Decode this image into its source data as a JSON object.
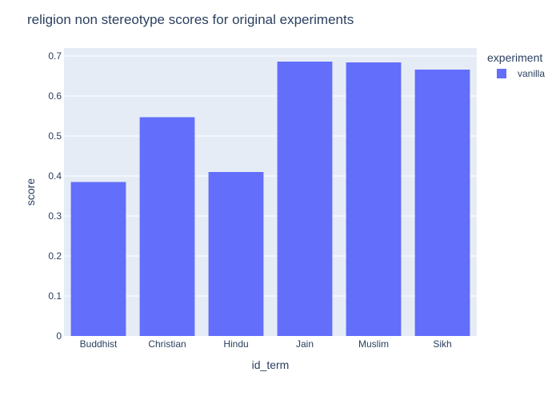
{
  "chart_data": {
    "type": "bar",
    "title": "religion non stereotype scores for original experiments",
    "xlabel": "id_term",
    "ylabel": "score",
    "categories": [
      "Buddhist",
      "Christian",
      "Hindu",
      "Jain",
      "Muslim",
      "Sikh"
    ],
    "series": [
      {
        "name": "vanilla",
        "values": [
          0.385,
          0.547,
          0.41,
          0.686,
          0.684,
          0.666
        ],
        "color": "#636efa"
      }
    ],
    "ylim": [
      0,
      0.72
    ],
    "yticks": [
      0,
      0.1,
      0.2,
      0.3,
      0.4,
      0.5,
      0.6,
      0.7
    ],
    "ytick_labels": [
      "0",
      "0.1",
      "0.2",
      "0.3",
      "0.4",
      "0.5",
      "0.6",
      "0.7"
    ],
    "grid": true,
    "legend": {
      "title": "experiment",
      "placement": "top-right"
    },
    "colors": {
      "plot_background": "#e5ecf6",
      "grid": "#ffffff",
      "text": "#2a3f5f",
      "bar": "#636efa"
    }
  }
}
